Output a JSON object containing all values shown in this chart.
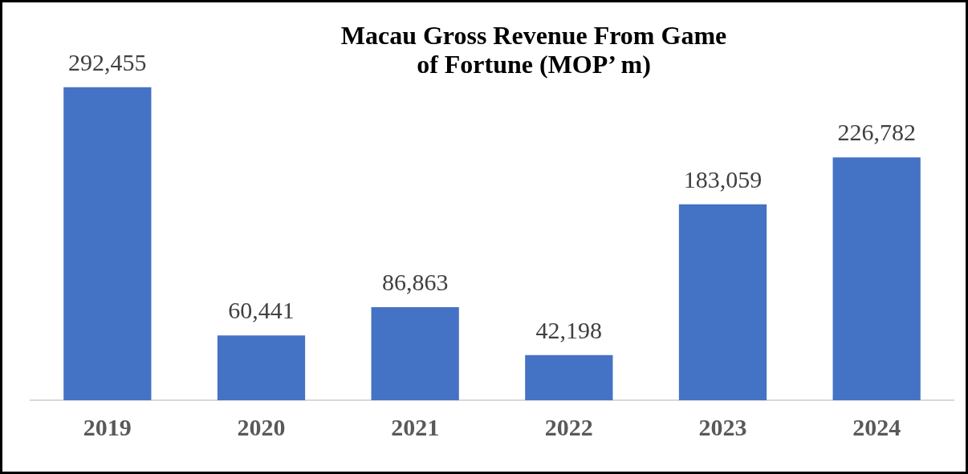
{
  "chart_data": {
    "type": "bar",
    "title": "Macau Gross Revenue From Game of Fortune (MOP’ m)",
    "categories": [
      "2019",
      "2020",
      "2021",
      "2022",
      "2023",
      "2024"
    ],
    "values": [
      292455,
      60441,
      86863,
      42198,
      183059,
      226782
    ],
    "value_labels": [
      "292,455",
      "60,441",
      "86,863",
      "42,198",
      "183,059",
      "226,782"
    ],
    "color": "#4472c4",
    "grid": false,
    "legend": false
  }
}
